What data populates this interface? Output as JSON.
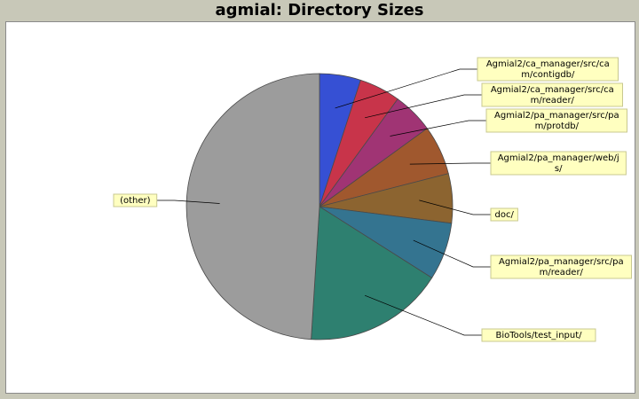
{
  "title": "agmial: Directory Sizes",
  "chart_data": {
    "type": "pie",
    "title": "agmial: Directory Sizes",
    "slices": [
      {
        "label": "Agmial2/ca_manager/src/cam/contigdb/",
        "label_lines": [
          "Agmial2/ca_manager/src/ca",
          "m/contigdb/"
        ],
        "value": 5,
        "color": "#3650d4"
      },
      {
        "label": "Agmial2/ca_manager/src/cam/reader/",
        "label_lines": [
          "Agmial2/ca_manager/src/ca",
          "m/reader/"
        ],
        "value": 5,
        "color": "#c8344a"
      },
      {
        "label": "Agmial2/pa_manager/src/pam/protdb/",
        "label_lines": [
          "Agmial2/pa_manager/src/pa",
          "m/protdb/"
        ],
        "value": 5,
        "color": "#a03474"
      },
      {
        "label": "Agmial2/pa_manager/web/js/",
        "label_lines": [
          "Agmial2/pa_manager/web/j",
          "s/"
        ],
        "value": 6,
        "color": "#a0582e"
      },
      {
        "label": "doc/",
        "label_lines": [
          "doc/"
        ],
        "value": 6,
        "color": "#8c6430"
      },
      {
        "label": "Agmial2/pa_manager/src/pam/reader/",
        "label_lines": [
          "Agmial2/pa_manager/src/pa",
          "m/reader/"
        ],
        "value": 7,
        "color": "#347490"
      },
      {
        "label": "BioTools/test_input/",
        "label_lines": [
          "BioTools/test_input/"
        ],
        "value": 17,
        "color": "#2e8070"
      },
      {
        "label": "(other)",
        "label_lines": [
          "(other)"
        ],
        "value": 49,
        "color": "#9c9c9c"
      }
    ]
  }
}
